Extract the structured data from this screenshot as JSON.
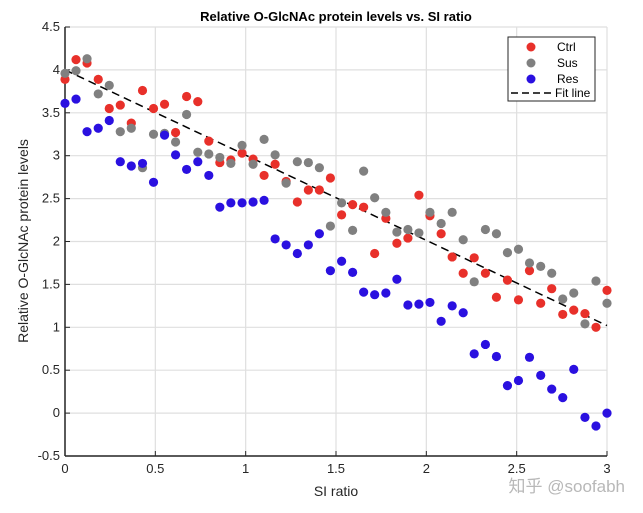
{
  "chart_data": {
    "type": "scatter",
    "title": "Relative O-GlcNAc protein levels vs. SI ratio",
    "xlabel": "SI ratio",
    "ylabel": "Relative O-GlcNAc protein levels",
    "xlim": [
      0,
      3
    ],
    "ylim": [
      -0.5,
      4.5
    ],
    "xticks": [
      "0",
      "0.5",
      "1",
      "1.5",
      "2",
      "2.5",
      "3"
    ],
    "xtick_values": [
      0,
      0.5,
      1,
      1.5,
      2,
      2.5,
      3
    ],
    "yticks": [
      "-0.5",
      "0",
      "0.5",
      "1",
      "1.5",
      "2",
      "2.5",
      "3",
      "3.5",
      "4",
      "4.5"
    ],
    "ytick_values": [
      -0.5,
      0,
      0.5,
      1,
      1.5,
      2,
      2.5,
      3,
      3.5,
      4,
      4.5
    ],
    "grid": true,
    "legend_position": "top-right",
    "x": [
      0,
      0.061,
      0.122,
      0.184,
      0.245,
      0.306,
      0.367,
      0.429,
      0.49,
      0.551,
      0.612,
      0.673,
      0.735,
      0.796,
      0.857,
      0.918,
      0.98,
      1.041,
      1.102,
      1.163,
      1.224,
      1.286,
      1.347,
      1.408,
      1.469,
      1.531,
      1.592,
      1.653,
      1.714,
      1.776,
      1.837,
      1.898,
      1.959,
      2.02,
      2.082,
      2.143,
      2.204,
      2.265,
      2.327,
      2.388,
      2.449,
      2.51,
      2.571,
      2.633,
      2.694,
      2.755,
      2.816,
      2.878,
      2.939,
      3.0
    ],
    "series": [
      {
        "name": "Ctrl",
        "color": "#e8302a",
        "values": [
          3.89,
          4.12,
          4.08,
          3.89,
          3.55,
          3.59,
          3.38,
          3.76,
          3.55,
          3.6,
          3.27,
          3.69,
          3.63,
          3.17,
          2.92,
          2.95,
          3.03,
          2.96,
          2.77,
          2.9,
          2.7,
          2.46,
          2.6,
          2.6,
          2.74,
          2.31,
          2.43,
          2.4,
          1.86,
          2.27,
          1.98,
          2.04,
          2.54,
          2.3,
          2.09,
          1.82,
          1.63,
          1.81,
          1.63,
          1.35,
          1.55,
          1.32,
          1.66,
          1.28,
          1.45,
          1.15,
          1.2,
          1.16,
          1.0,
          1.43
        ]
      },
      {
        "name": "Sus",
        "color": "#808080",
        "values": [
          3.96,
          3.99,
          4.13,
          3.72,
          3.82,
          3.28,
          3.32,
          2.86,
          3.25,
          3.26,
          3.16,
          3.48,
          3.04,
          3.02,
          2.98,
          2.91,
          3.12,
          2.9,
          3.19,
          3.01,
          2.68,
          2.93,
          2.92,
          2.86,
          2.18,
          2.45,
          2.13,
          2.82,
          2.51,
          2.34,
          2.11,
          2.14,
          2.1,
          2.34,
          2.21,
          2.34,
          2.02,
          1.53,
          2.14,
          2.09,
          1.87,
          1.91,
          1.75,
          1.71,
          1.63,
          1.33,
          1.4,
          1.04,
          1.54,
          1.28
        ]
      },
      {
        "name": "Res",
        "color": "#2a10e0",
        "values": [
          3.61,
          3.66,
          3.28,
          3.32,
          3.41,
          2.93,
          2.88,
          2.91,
          2.69,
          3.24,
          3.01,
          2.84,
          2.93,
          2.77,
          2.4,
          2.45,
          2.45,
          2.46,
          2.48,
          2.03,
          1.96,
          1.86,
          1.96,
          2.09,
          1.66,
          1.77,
          1.64,
          1.41,
          1.38,
          1.4,
          1.56,
          1.26,
          1.27,
          1.29,
          1.07,
          1.25,
          1.17,
          0.69,
          0.8,
          0.66,
          0.32,
          0.38,
          0.65,
          0.44,
          0.28,
          0.18,
          0.51,
          -0.05,
          -0.15,
          0.0
        ]
      }
    ],
    "fit_line": {
      "name": "Fit line",
      "color": "#000000",
      "x": [
        0,
        3
      ],
      "y": [
        4.0,
        1.02
      ]
    }
  },
  "watermark": "知乎 @soofabh"
}
